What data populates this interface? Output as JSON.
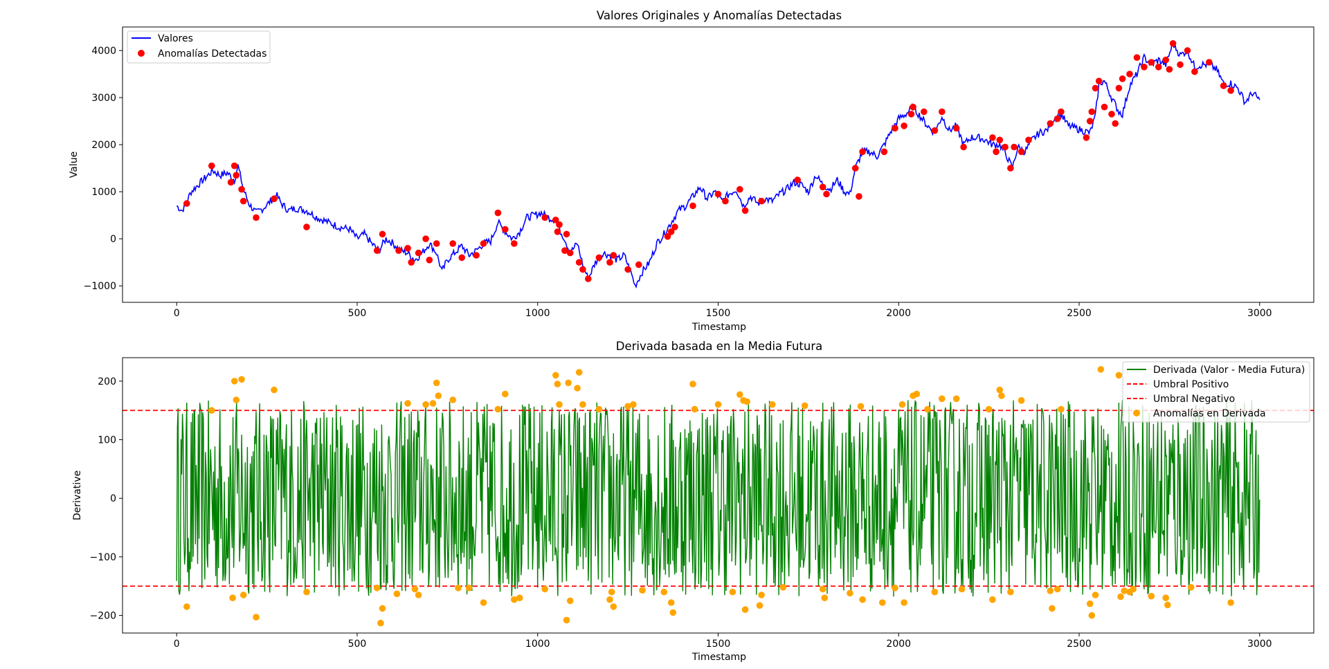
{
  "chart_data": [
    {
      "type": "line",
      "title": "Valores Originales y Anomalías Detectadas",
      "xlabel": "Timestamp",
      "ylabel": "Value",
      "xlim": [
        -150,
        3150
      ],
      "ylim": [
        -1350,
        4500
      ],
      "xticks": [
        0,
        500,
        1000,
        1500,
        2000,
        2500,
        3000
      ],
      "yticks": [
        -1000,
        0,
        1000,
        2000,
        3000,
        4000
      ],
      "ytick_labels": [
        "−1000",
        "0",
        "1000",
        "2000",
        "3000",
        "4000"
      ],
      "legend_position": "upper left",
      "series": [
        {
          "name": "Valores",
          "kind": "line",
          "color": "#0000ff",
          "x": [
            0,
            15,
            25,
            40,
            60,
            80,
            100,
            120,
            140,
            160,
            170,
            185,
            200,
            220,
            240,
            260,
            275,
            290,
            310,
            330,
            360,
            390,
            420,
            450,
            480,
            500,
            520,
            540,
            560,
            580,
            600,
            620,
            640,
            660,
            680,
            700,
            720,
            735,
            750,
            770,
            790,
            810,
            830,
            850,
            870,
            890,
            910,
            930,
            950,
            970,
            990,
            1010,
            1030,
            1050,
            1060,
            1075,
            1090,
            1110,
            1125,
            1140,
            1160,
            1180,
            1200,
            1220,
            1240,
            1260,
            1270,
            1290,
            1310,
            1330,
            1350,
            1370,
            1390,
            1410,
            1430,
            1450,
            1470,
            1490,
            1510,
            1530,
            1550,
            1570,
            1590,
            1610,
            1630,
            1650,
            1670,
            1690,
            1710,
            1730,
            1750,
            1770,
            1790,
            1810,
            1830,
            1850,
            1865,
            1880,
            1900,
            1920,
            1940,
            1960,
            1980,
            2000,
            2020,
            2040,
            2060,
            2080,
            2100,
            2120,
            2140,
            2160,
            2180,
            2200,
            2220,
            2240,
            2260,
            2280,
            2300,
            2315,
            2330,
            2350,
            2370,
            2390,
            2410,
            2430,
            2450,
            2470,
            2490,
            2510,
            2530,
            2545,
            2555,
            2570,
            2590,
            2610,
            2620,
            2640,
            2660,
            2680,
            2700,
            2720,
            2740,
            2760,
            2780,
            2800,
            2820,
            2840,
            2860,
            2880,
            2900,
            2920,
            2940,
            2960,
            2980,
            3000
          ],
          "y": [
            700,
            600,
            750,
            1000,
            1150,
            1300,
            1450,
            1350,
            1400,
            1250,
            1550,
            1050,
            750,
            550,
            650,
            800,
            950,
            750,
            600,
            650,
            600,
            450,
            350,
            250,
            200,
            0,
            100,
            -100,
            -250,
            0,
            -100,
            -250,
            -300,
            -450,
            -300,
            -100,
            -300,
            -700,
            -450,
            -300,
            -150,
            -350,
            -250,
            -100,
            -50,
            350,
            150,
            0,
            150,
            450,
            500,
            550,
            450,
            400,
            200,
            0,
            -300,
            -100,
            -550,
            -850,
            -500,
            -300,
            -350,
            -450,
            -350,
            -750,
            -1000,
            -700,
            -500,
            -100,
            100,
            350,
            600,
            700,
            900,
            1100,
            850,
            1000,
            800,
            950,
            1050,
            700,
            900,
            750,
            850,
            800,
            950,
            1050,
            1200,
            1150,
            1000,
            1350,
            1150,
            1050,
            1250,
            1000,
            950,
            1500,
            1850,
            1850,
            1750,
            2000,
            2300,
            2550,
            2650,
            2800,
            2600,
            2400,
            2250,
            2600,
            2300,
            2400,
            2000,
            2150,
            2150,
            2100,
            2000,
            2000,
            1750,
            1500,
            1950,
            1850,
            2100,
            2250,
            2300,
            2550,
            2650,
            2400,
            2350,
            2300,
            2250,
            2600,
            3300,
            3350,
            3000,
            2700,
            2650,
            3250,
            3500,
            3850,
            3700,
            3800,
            3700,
            4150,
            3900,
            4000,
            3650,
            3700,
            3700,
            3600,
            3300,
            3300,
            3200,
            2900,
            3100,
            2950
          ]
        },
        {
          "name": "Anomalías Detectadas",
          "kind": "scatter",
          "color": "#ff0000",
          "x": [
            28,
            97,
            150,
            160,
            165,
            180,
            185,
            220,
            270,
            360,
            555,
            570,
            615,
            640,
            650,
            670,
            690,
            700,
            720,
            765,
            790,
            830,
            850,
            890,
            910,
            935,
            1020,
            1050,
            1055,
            1060,
            1075,
            1080,
            1090,
            1115,
            1125,
            1140,
            1170,
            1200,
            1210,
            1250,
            1280,
            1360,
            1370,
            1380,
            1430,
            1500,
            1520,
            1560,
            1575,
            1620,
            1720,
            1790,
            1800,
            1880,
            1890,
            1900,
            1960,
            1990,
            2015,
            2035,
            2040,
            2070,
            2100,
            2120,
            2160,
            2180,
            2260,
            2270,
            2280,
            2295,
            2310,
            2320,
            2340,
            2360,
            2420,
            2440,
            2450,
            2520,
            2530,
            2535,
            2545,
            2555,
            2570,
            2590,
            2600,
            2610,
            2620,
            2640,
            2660,
            2680,
            2700,
            2720,
            2740,
            2750,
            2760,
            2780,
            2800,
            2820,
            2860,
            2900,
            2920
          ],
          "y": [
            750,
            1550,
            1200,
            1550,
            1350,
            1050,
            800,
            450,
            850,
            250,
            -250,
            100,
            -250,
            -200,
            -500,
            -300,
            0,
            -450,
            -100,
            -100,
            -400,
            -350,
            -100,
            550,
            200,
            -100,
            450,
            400,
            150,
            300,
            -250,
            100,
            -300,
            -500,
            -650,
            -850,
            -400,
            -500,
            -350,
            -650,
            -550,
            50,
            150,
            250,
            700,
            950,
            800,
            1050,
            600,
            800,
            1250,
            1100,
            950,
            1500,
            900,
            1850,
            1850,
            2350,
            2400,
            2650,
            2800,
            2700,
            2300,
            2700,
            2350,
            1950,
            2150,
            1850,
            2100,
            1950,
            1500,
            1950,
            1850,
            2100,
            2450,
            2550,
            2700,
            2150,
            2500,
            2700,
            3200,
            3350,
            2800,
            2650,
            2450,
            3200,
            3400,
            3500,
            3850,
            3650,
            3750,
            3650,
            3800,
            3600,
            4150,
            3700,
            4000,
            3550,
            3750,
            3250,
            3150
          ]
        }
      ]
    },
    {
      "type": "line",
      "title": "Derivada basada en la Media Futura",
      "xlabel": "Timestamp",
      "ylabel": "Derivative",
      "xlim": [
        -150,
        3150
      ],
      "ylim": [
        -230,
        240
      ],
      "xticks": [
        0,
        500,
        1000,
        1500,
        2000,
        2500,
        3000
      ],
      "yticks": [
        -200,
        -100,
        0,
        100,
        200
      ],
      "ytick_labels": [
        "−200",
        "−100",
        "0",
        "100",
        "200"
      ],
      "legend_position": "upper right",
      "series": [
        {
          "name": "Derivada (Valor - Media Futura)",
          "kind": "noise_line",
          "color": "#008000",
          "x_range": [
            0,
            3000
          ],
          "amplitude": 215
        },
        {
          "name": "Umbral Positivo",
          "kind": "hline",
          "color": "#ff0000",
          "y": 150
        },
        {
          "name": "Umbral Negativo",
          "kind": "hline",
          "color": "#ff0000",
          "y": -150
        },
        {
          "name": "Anomalías en Derivada",
          "kind": "scatter",
          "color": "#ffa500",
          "x": [
            28,
            97,
            155,
            160,
            165,
            180,
            185,
            220,
            270,
            360,
            555,
            565,
            570,
            610,
            640,
            660,
            670,
            690,
            710,
            720,
            725,
            765,
            780,
            810,
            850,
            890,
            910,
            935,
            950,
            1020,
            1050,
            1055,
            1060,
            1080,
            1085,
            1090,
            1110,
            1115,
            1125,
            1170,
            1200,
            1205,
            1210,
            1250,
            1265,
            1290,
            1350,
            1370,
            1375,
            1430,
            1435,
            1500,
            1540,
            1560,
            1570,
            1575,
            1580,
            1615,
            1620,
            1650,
            1680,
            1740,
            1790,
            1795,
            1865,
            1895,
            1900,
            1955,
            1990,
            2010,
            2015,
            2040,
            2050,
            2080,
            2100,
            2120,
            2160,
            2175,
            2250,
            2260,
            2280,
            2285,
            2310,
            2340,
            2420,
            2425,
            2440,
            2450,
            2530,
            2535,
            2545,
            2560,
            2610,
            2615,
            2625,
            2640,
            2650,
            2700,
            2740,
            2745,
            2810,
            2920
          ],
          "y": [
            -185,
            150,
            -170,
            200,
            168,
            203,
            -165,
            -203,
            185,
            -160,
            -153,
            -213,
            -188,
            -163,
            162,
            -155,
            -165,
            160,
            162,
            197,
            175,
            168,
            -153,
            -153,
            -178,
            152,
            178,
            -173,
            -170,
            -155,
            210,
            195,
            160,
            -208,
            197,
            -175,
            188,
            215,
            160,
            152,
            -173,
            -160,
            -185,
            157,
            160,
            -157,
            -160,
            -178,
            -195,
            195,
            152,
            160,
            -160,
            177,
            167,
            -190,
            165,
            -183,
            -165,
            160,
            -152,
            158,
            -155,
            -170,
            -162,
            157,
            -173,
            -178,
            -153,
            160,
            -178,
            175,
            178,
            152,
            -160,
            170,
            170,
            -155,
            152,
            -173,
            185,
            175,
            -160,
            167,
            -158,
            -188,
            -155,
            152,
            -180,
            -200,
            -165,
            220,
            210,
            -168,
            -158,
            -160,
            -155,
            -167,
            -170,
            -182,
            -152,
            -178
          ]
        }
      ]
    }
  ]
}
